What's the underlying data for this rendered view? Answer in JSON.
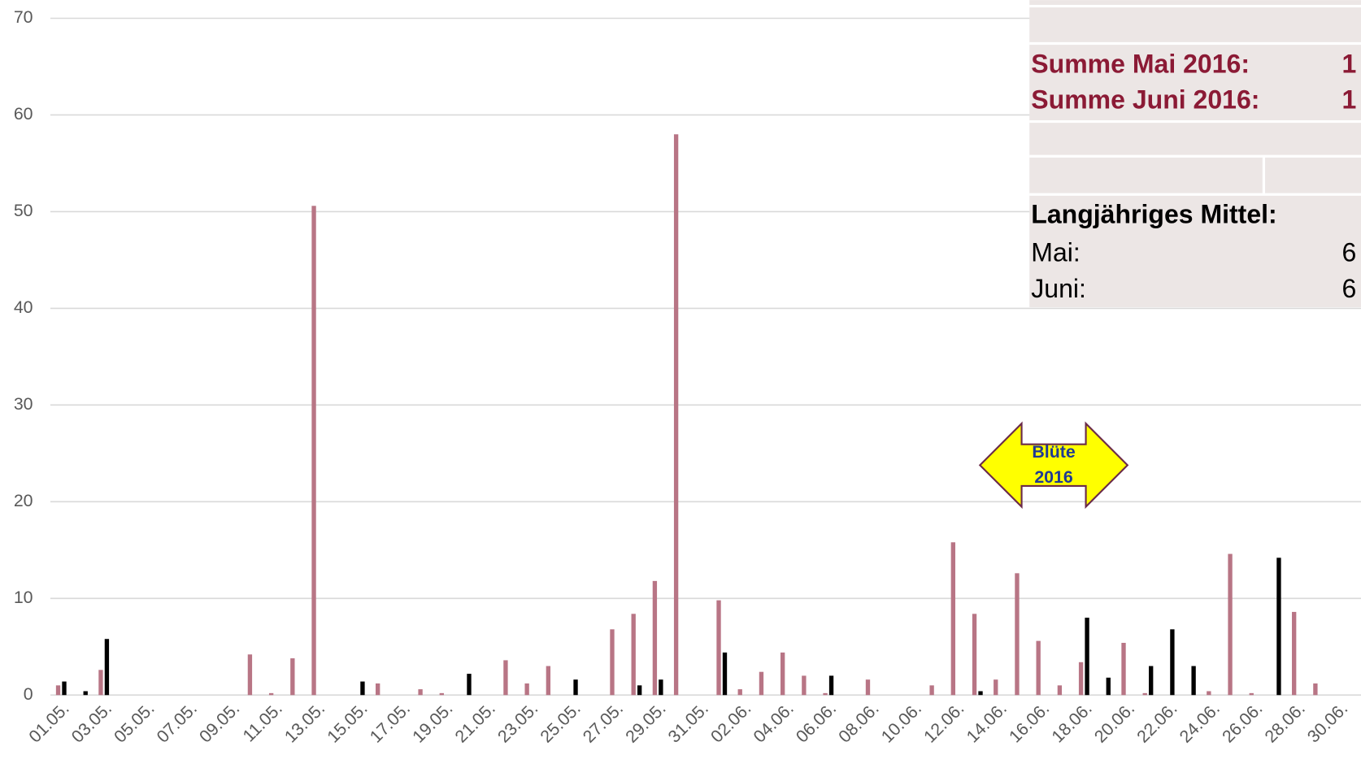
{
  "chart_data": {
    "type": "bar",
    "categories": [
      "01.05.",
      null,
      "03.05.",
      null,
      "05.05.",
      null,
      "07.05.",
      null,
      "09.05.",
      null,
      "11.05.",
      null,
      "13.05.",
      null,
      "15.05.",
      null,
      "17.05.",
      null,
      "19.05.",
      null,
      "21.05.",
      null,
      "23.05.",
      null,
      "25.05.",
      null,
      "27.05.",
      null,
      "29.05.",
      null,
      "31.05.",
      null,
      "02.06.",
      null,
      "04.06.",
      null,
      "06.06.",
      null,
      "08.06.",
      null,
      "10.06.",
      null,
      "12.06.",
      null,
      "14.06.",
      null,
      "16.06.",
      null,
      "18.06.",
      null,
      "20.06.",
      null,
      "22.06.",
      null,
      "24.06.",
      null,
      "26.06.",
      null,
      "28.06.",
      null,
      "30.06."
    ],
    "series": [
      {
        "color": "#b87585",
        "values": [
          1.0,
          0,
          2.6,
          0,
          0,
          0,
          0,
          0,
          0,
          4.2,
          0.2,
          3.8,
          50.6,
          0,
          0,
          1.2,
          0,
          0.6,
          0.2,
          0,
          0,
          3.6,
          1.2,
          3.0,
          0,
          0,
          6.8,
          8.4,
          11.8,
          58.0,
          0,
          9.8,
          0.6,
          2.4,
          4.4,
          2.0,
          0.2,
          0,
          1.6,
          0,
          0,
          1.0,
          15.8,
          8.4,
          1.6,
          12.6,
          5.6,
          1.0,
          3.4,
          0,
          5.4,
          0.2,
          0,
          0,
          0.4,
          14.6,
          0.2,
          0,
          8.6,
          1.2,
          0
        ]
      },
      {
        "color": "#000000",
        "values": [
          1.4,
          0.4,
          5.8,
          0,
          0,
          0,
          0,
          0,
          0,
          0,
          0,
          0,
          0,
          0,
          1.4,
          0,
          0,
          0,
          0,
          2.2,
          0,
          0,
          0,
          0,
          1.6,
          0,
          0,
          1.0,
          1.6,
          0,
          0,
          4.4,
          0,
          0,
          0,
          0,
          2.0,
          0,
          0,
          0,
          0,
          0,
          0,
          0.4,
          0,
          0,
          0,
          0,
          8.0,
          1.8,
          0,
          3.0,
          6.8,
          3.0,
          0,
          0,
          0,
          14.2,
          0,
          0,
          0
        ]
      }
    ],
    "ylim": [
      0,
      70
    ],
    "yticks": [
      0,
      10,
      20,
      30,
      40,
      50,
      60,
      70
    ],
    "grid": true,
    "annotation": [
      "Blüte",
      "2016"
    ]
  },
  "table": {
    "rows": [
      [
        "Summe Mai 2016:",
        "1"
      ],
      [
        "Summe Juni 2016:",
        "1"
      ],
      [
        "Langjähriges Mittel:"
      ],
      [
        "Mai:",
        "6"
      ],
      [
        "Juni:",
        "6"
      ]
    ]
  }
}
